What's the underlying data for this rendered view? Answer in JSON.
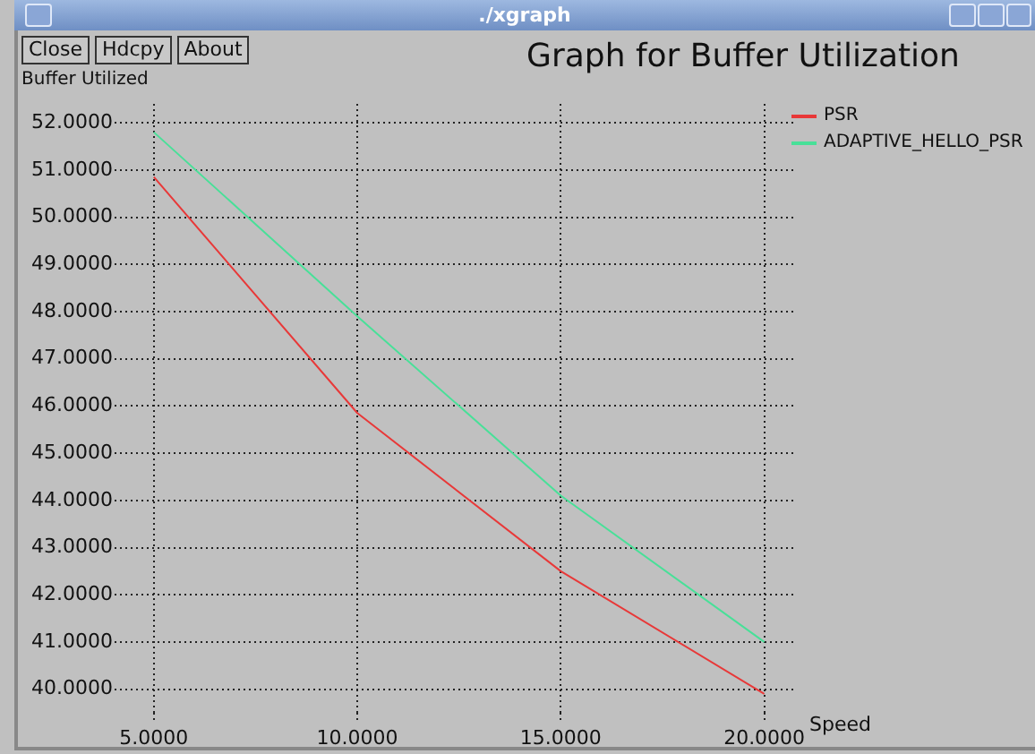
{
  "chart_data": {
    "type": "line",
    "title": "Graph for Buffer Utilization",
    "xlabel": "Speed",
    "ylabel": "Buffer Utilized",
    "annotations": [
      "./xgraph",
      "Close",
      "Hdcpy",
      "About"
    ],
    "x": [
      5,
      10,
      15,
      20
    ],
    "series": [
      {
        "name": "PSR",
        "color": "#e83838",
        "values": [
          50.85,
          45.85,
          42.5,
          39.9
        ]
      },
      {
        "name": "ADAPTIVE_HELLO_PSR",
        "color": "#48e098",
        "values": [
          51.8,
          47.9,
          44.1,
          41.0
        ]
      }
    ],
    "xlim": [
      4.3,
      20.8
    ],
    "ylim": [
      39.5,
      52.4
    ],
    "xticks": [
      {
        "value": 5,
        "label": "5.0000"
      },
      {
        "value": 10,
        "label": "10.0000"
      },
      {
        "value": 15,
        "label": "15.0000"
      },
      {
        "value": 20,
        "label": "20.0000"
      }
    ],
    "yticks": [
      {
        "value": 40,
        "label": "40.0000"
      },
      {
        "value": 41,
        "label": "41.0000"
      },
      {
        "value": 42,
        "label": "42.0000"
      },
      {
        "value": 43,
        "label": "43.0000"
      },
      {
        "value": 44,
        "label": "44.0000"
      },
      {
        "value": 45,
        "label": "45.0000"
      },
      {
        "value": 46,
        "label": "46.0000"
      },
      {
        "value": 47,
        "label": "47.0000"
      },
      {
        "value": 48,
        "label": "48.0000"
      },
      {
        "value": 49,
        "label": "49.0000"
      },
      {
        "value": 50,
        "label": "50.0000"
      },
      {
        "value": 51,
        "label": "51.0000"
      },
      {
        "value": 52,
        "label": "52.0000"
      }
    ],
    "grid": true,
    "legend": "top right"
  }
}
